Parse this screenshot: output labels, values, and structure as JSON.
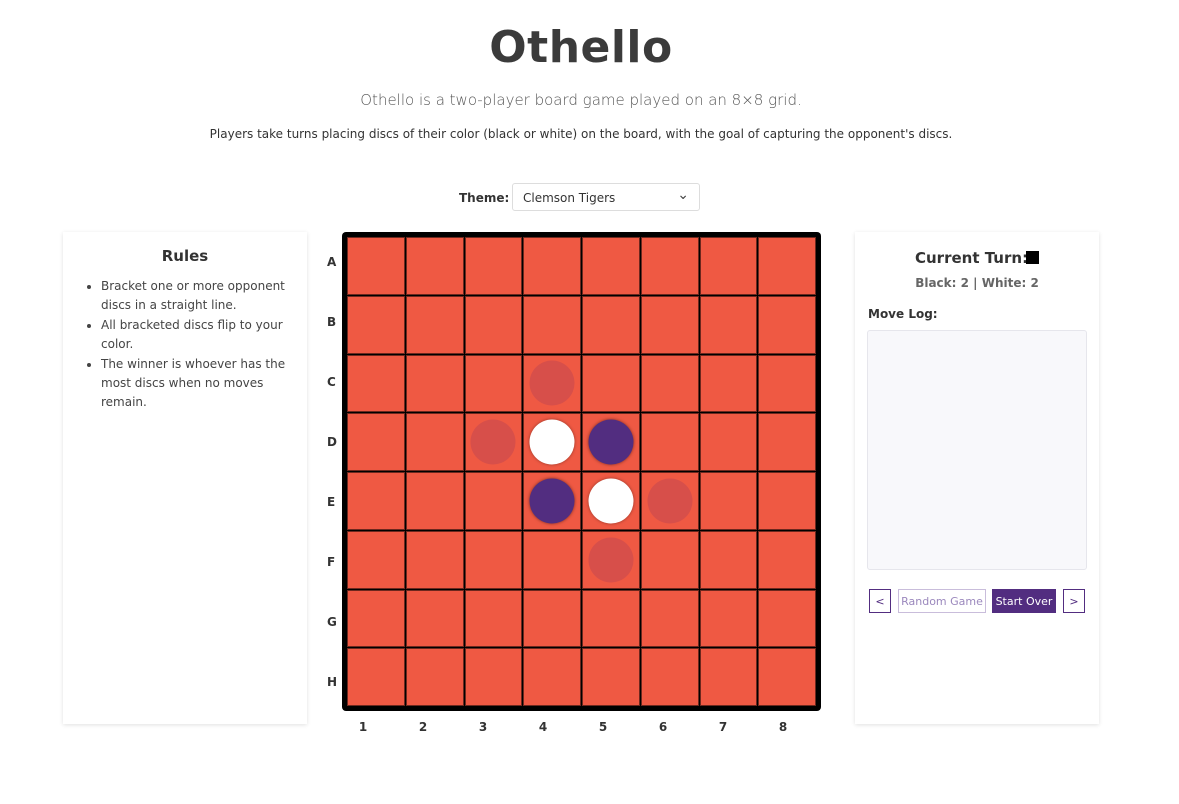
{
  "header": {
    "title": "Othello",
    "subtitle": "Othello is a two-player board game played on an 8×8 grid.",
    "description": "Players take turns placing discs of their color (black or white) on the board, with the goal of capturing the opponent's discs."
  },
  "theme": {
    "label": "Theme:",
    "selected": "Clemson Tigers",
    "colors": {
      "board": "#ef5943",
      "black_disc": "#522d80",
      "white_disc": "#ffffff",
      "hint": "#d24d4b"
    }
  },
  "rules": {
    "title": "Rules",
    "items": [
      "Bracket one or more opponent discs in a straight line.",
      "All bracketed discs flip to your color.",
      "The winner is whoever has the most discs when no moves remain."
    ]
  },
  "board": {
    "row_labels": [
      "A",
      "B",
      "C",
      "D",
      "E",
      "F",
      "G",
      "H"
    ],
    "col_labels": [
      "1",
      "2",
      "3",
      "4",
      "5",
      "6",
      "7",
      "8"
    ],
    "discs": [
      {
        "row": "D",
        "col": "4",
        "color": "white"
      },
      {
        "row": "D",
        "col": "5",
        "color": "black"
      },
      {
        "row": "E",
        "col": "4",
        "color": "black"
      },
      {
        "row": "E",
        "col": "5",
        "color": "white"
      }
    ],
    "valid_moves": [
      {
        "row": "C",
        "col": "4"
      },
      {
        "row": "D",
        "col": "3"
      },
      {
        "row": "E",
        "col": "6"
      },
      {
        "row": "F",
        "col": "5"
      }
    ]
  },
  "status": {
    "current_turn_label": "Current Turn:",
    "current_turn_color": "black",
    "score": "Black: 2 | White: 2"
  },
  "move_log": {
    "label": "Move Log:",
    "entries": []
  },
  "controls": {
    "prev_label": "<",
    "random_label": "Random Game",
    "start_over_label": "Start Over",
    "next_label": ">"
  }
}
